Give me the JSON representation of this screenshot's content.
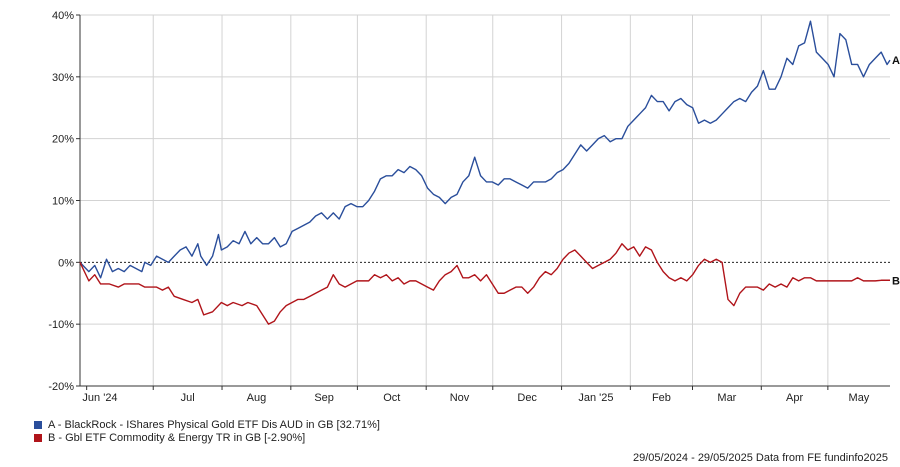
{
  "chart_data": {
    "type": "line",
    "ylim": [
      -20,
      40
    ],
    "y_ticks": [
      40,
      30,
      20,
      10,
      0,
      -10,
      -20
    ],
    "y_tick_labels": [
      "40%",
      "30%",
      "20%",
      "10%",
      "0%",
      "-10%",
      "-20%"
    ],
    "x_tick_labels": [
      "Jun '24",
      "Jul",
      "Aug",
      "Sep",
      "Oct",
      "Nov",
      "Dec",
      "Jan '25",
      "Feb",
      "Mar",
      "Apr",
      "May"
    ],
    "grid": true,
    "legend_position": "bottom-left",
    "series": [
      {
        "name": "A - BlackRock - IShares Physical Gold ETF Dis AUD in GB [32.71%]",
        "end_label": "A",
        "color": "#2a4e9b",
        "points": [
          [
            0,
            0
          ],
          [
            3,
            -1.5
          ],
          [
            5,
            -0.5
          ],
          [
            7,
            -2.5
          ],
          [
            9,
            0.5
          ],
          [
            11,
            -1.5
          ],
          [
            13,
            -1
          ],
          [
            15,
            -1.5
          ],
          [
            17,
            -0.5
          ],
          [
            19,
            -1
          ],
          [
            21,
            -1.5
          ],
          [
            22,
            0
          ],
          [
            24,
            -0.5
          ],
          [
            26,
            1
          ],
          [
            28,
            0.5
          ],
          [
            30,
            0
          ],
          [
            32,
            1
          ],
          [
            34,
            2
          ],
          [
            36,
            2.5
          ],
          [
            38,
            1
          ],
          [
            40,
            3
          ],
          [
            41,
            1
          ],
          [
            43,
            -0.5
          ],
          [
            45,
            1
          ],
          [
            47,
            4.5
          ],
          [
            48,
            2
          ],
          [
            50,
            2.5
          ],
          [
            52,
            3.5
          ],
          [
            54,
            3
          ],
          [
            56,
            5
          ],
          [
            58,
            3
          ],
          [
            60,
            4
          ],
          [
            62,
            3
          ],
          [
            64,
            3
          ],
          [
            66,
            4
          ],
          [
            68,
            2.5
          ],
          [
            70,
            3
          ],
          [
            72,
            5
          ],
          [
            74,
            5.5
          ],
          [
            76,
            6
          ],
          [
            78,
            6.5
          ],
          [
            80,
            7.5
          ],
          [
            82,
            8
          ],
          [
            84,
            7
          ],
          [
            86,
            8
          ],
          [
            88,
            7
          ],
          [
            90,
            9
          ],
          [
            92,
            9.5
          ],
          [
            94,
            9
          ],
          [
            96,
            9
          ],
          [
            98,
            10
          ],
          [
            100,
            11.5
          ],
          [
            102,
            13.5
          ],
          [
            104,
            14
          ],
          [
            106,
            14
          ],
          [
            108,
            15
          ],
          [
            110,
            14.5
          ],
          [
            112,
            15.5
          ],
          [
            114,
            15
          ],
          [
            116,
            14
          ],
          [
            118,
            12
          ],
          [
            120,
            11
          ],
          [
            122,
            10.5
          ],
          [
            124,
            9.5
          ],
          [
            126,
            10.5
          ],
          [
            128,
            11
          ],
          [
            130,
            13
          ],
          [
            132,
            14
          ],
          [
            134,
            17
          ],
          [
            136,
            14
          ],
          [
            138,
            13
          ],
          [
            140,
            13
          ],
          [
            142,
            12.5
          ],
          [
            144,
            13.5
          ],
          [
            146,
            13.5
          ],
          [
            148,
            13
          ],
          [
            150,
            12.5
          ],
          [
            152,
            12
          ],
          [
            154,
            13
          ],
          [
            156,
            13
          ],
          [
            158,
            13
          ],
          [
            160,
            13.5
          ],
          [
            162,
            14.5
          ],
          [
            164,
            15
          ],
          [
            166,
            16
          ],
          [
            168,
            17.5
          ],
          [
            170,
            19
          ],
          [
            172,
            18
          ],
          [
            174,
            19
          ],
          [
            176,
            20
          ],
          [
            178,
            20.5
          ],
          [
            180,
            19.5
          ],
          [
            182,
            20
          ],
          [
            184,
            20
          ],
          [
            186,
            22
          ],
          [
            188,
            23
          ],
          [
            190,
            24
          ],
          [
            192,
            25
          ],
          [
            194,
            27
          ],
          [
            196,
            26
          ],
          [
            198,
            26
          ],
          [
            200,
            24.5
          ],
          [
            202,
            26
          ],
          [
            204,
            26.5
          ],
          [
            206,
            25.5
          ],
          [
            208,
            25
          ],
          [
            210,
            22.5
          ],
          [
            212,
            23
          ],
          [
            214,
            22.5
          ],
          [
            216,
            23
          ],
          [
            218,
            24
          ],
          [
            220,
            25
          ],
          [
            222,
            26
          ],
          [
            224,
            26.5
          ],
          [
            226,
            26
          ],
          [
            228,
            27.5
          ],
          [
            230,
            28.5
          ],
          [
            232,
            31
          ],
          [
            234,
            28
          ],
          [
            236,
            28
          ],
          [
            238,
            30
          ],
          [
            240,
            33
          ],
          [
            242,
            32
          ],
          [
            244,
            35
          ],
          [
            246,
            35.5
          ],
          [
            248,
            39
          ],
          [
            250,
            34
          ],
          [
            252,
            33
          ],
          [
            254,
            32
          ],
          [
            256,
            30
          ],
          [
            258,
            37
          ],
          [
            260,
            36
          ],
          [
            262,
            32
          ],
          [
            264,
            32
          ],
          [
            266,
            30
          ],
          [
            268,
            32
          ],
          [
            270,
            33
          ],
          [
            272,
            34
          ],
          [
            274,
            32
          ],
          [
            275,
            32.7
          ]
        ]
      },
      {
        "name": "B - Gbl ETF Commodity & Energy TR in GB [-2.90%]",
        "end_label": "B",
        "color": "#b0141a",
        "points": [
          [
            0,
            0
          ],
          [
            3,
            -3
          ],
          [
            5,
            -2
          ],
          [
            7,
            -3.5
          ],
          [
            10,
            -3.5
          ],
          [
            13,
            -4
          ],
          [
            15,
            -3.5
          ],
          [
            18,
            -3.5
          ],
          [
            20,
            -3.5
          ],
          [
            22,
            -4
          ],
          [
            24,
            -4
          ],
          [
            26,
            -4
          ],
          [
            28,
            -4.5
          ],
          [
            30,
            -4
          ],
          [
            32,
            -5.5
          ],
          [
            35,
            -6
          ],
          [
            38,
            -6.5
          ],
          [
            40,
            -6
          ],
          [
            42,
            -8.5
          ],
          [
            45,
            -8
          ],
          [
            48,
            -6.5
          ],
          [
            50,
            -7
          ],
          [
            52,
            -6.5
          ],
          [
            55,
            -7
          ],
          [
            57,
            -6.5
          ],
          [
            60,
            -7
          ],
          [
            62,
            -8.5
          ],
          [
            64,
            -10
          ],
          [
            66,
            -9.5
          ],
          [
            68,
            -8
          ],
          [
            70,
            -7
          ],
          [
            72,
            -6.5
          ],
          [
            74,
            -6
          ],
          [
            76,
            -6
          ],
          [
            78,
            -5.5
          ],
          [
            80,
            -5
          ],
          [
            82,
            -4.5
          ],
          [
            84,
            -4
          ],
          [
            86,
            -2
          ],
          [
            88,
            -3.5
          ],
          [
            90,
            -4
          ],
          [
            92,
            -3.5
          ],
          [
            94,
            -3
          ],
          [
            96,
            -3
          ],
          [
            98,
            -3
          ],
          [
            100,
            -2
          ],
          [
            102,
            -2.5
          ],
          [
            104,
            -2
          ],
          [
            106,
            -3
          ],
          [
            108,
            -2.5
          ],
          [
            110,
            -3.5
          ],
          [
            112,
            -3
          ],
          [
            114,
            -3
          ],
          [
            116,
            -3.5
          ],
          [
            118,
            -4
          ],
          [
            120,
            -4.5
          ],
          [
            122,
            -3
          ],
          [
            124,
            -2
          ],
          [
            126,
            -1.5
          ],
          [
            128,
            -0.5
          ],
          [
            130,
            -2.5
          ],
          [
            132,
            -2.5
          ],
          [
            134,
            -2
          ],
          [
            136,
            -3
          ],
          [
            138,
            -2
          ],
          [
            140,
            -3.5
          ],
          [
            142,
            -5
          ],
          [
            144,
            -5
          ],
          [
            146,
            -4.5
          ],
          [
            148,
            -4
          ],
          [
            150,
            -4
          ],
          [
            152,
            -5
          ],
          [
            154,
            -4
          ],
          [
            156,
            -2.5
          ],
          [
            158,
            -1.5
          ],
          [
            160,
            -2
          ],
          [
            162,
            -1
          ],
          [
            164,
            0.5
          ],
          [
            166,
            1.5
          ],
          [
            168,
            2
          ],
          [
            170,
            1
          ],
          [
            172,
            0
          ],
          [
            174,
            -1
          ],
          [
            176,
            -0.5
          ],
          [
            178,
            0
          ],
          [
            180,
            0.5
          ],
          [
            182,
            1.5
          ],
          [
            184,
            3
          ],
          [
            186,
            2
          ],
          [
            188,
            2.5
          ],
          [
            190,
            1
          ],
          [
            192,
            2.5
          ],
          [
            194,
            2
          ],
          [
            196,
            0
          ],
          [
            198,
            -1.5
          ],
          [
            200,
            -2.5
          ],
          [
            202,
            -3
          ],
          [
            204,
            -2.5
          ],
          [
            206,
            -3
          ],
          [
            208,
            -2
          ],
          [
            210,
            -0.5
          ],
          [
            212,
            0.5
          ],
          [
            214,
            0
          ],
          [
            216,
            0.5
          ],
          [
            218,
            0
          ],
          [
            220,
            -6
          ],
          [
            222,
            -7
          ],
          [
            224,
            -5
          ],
          [
            226,
            -4
          ],
          [
            228,
            -4
          ],
          [
            230,
            -4
          ],
          [
            232,
            -4.5
          ],
          [
            234,
            -3.5
          ],
          [
            236,
            -4
          ],
          [
            238,
            -3.5
          ],
          [
            240,
            -4
          ],
          [
            242,
            -2.5
          ],
          [
            244,
            -3
          ],
          [
            246,
            -2.5
          ],
          [
            248,
            -2.5
          ],
          [
            250,
            -3
          ],
          [
            252,
            -3
          ],
          [
            254,
            -3
          ],
          [
            256,
            -3
          ],
          [
            258,
            -3
          ],
          [
            260,
            -3
          ],
          [
            262,
            -3
          ],
          [
            264,
            -2.5
          ],
          [
            266,
            -3
          ],
          [
            268,
            -3
          ],
          [
            270,
            -3
          ],
          [
            272,
            -2.9
          ],
          [
            275,
            -2.9
          ]
        ]
      }
    ]
  },
  "legend": [
    {
      "label": "A - BlackRock - IShares Physical Gold ETF Dis AUD in GB [32.71%]",
      "color": "#2a4e9b"
    },
    {
      "label": "B - Gbl ETF Commodity & Energy TR in GB [-2.90%]",
      "color": "#b0141a"
    }
  ],
  "footer": {
    "source": "29/05/2024 - 29/05/2025 Data from FE fundinfo2025"
  }
}
